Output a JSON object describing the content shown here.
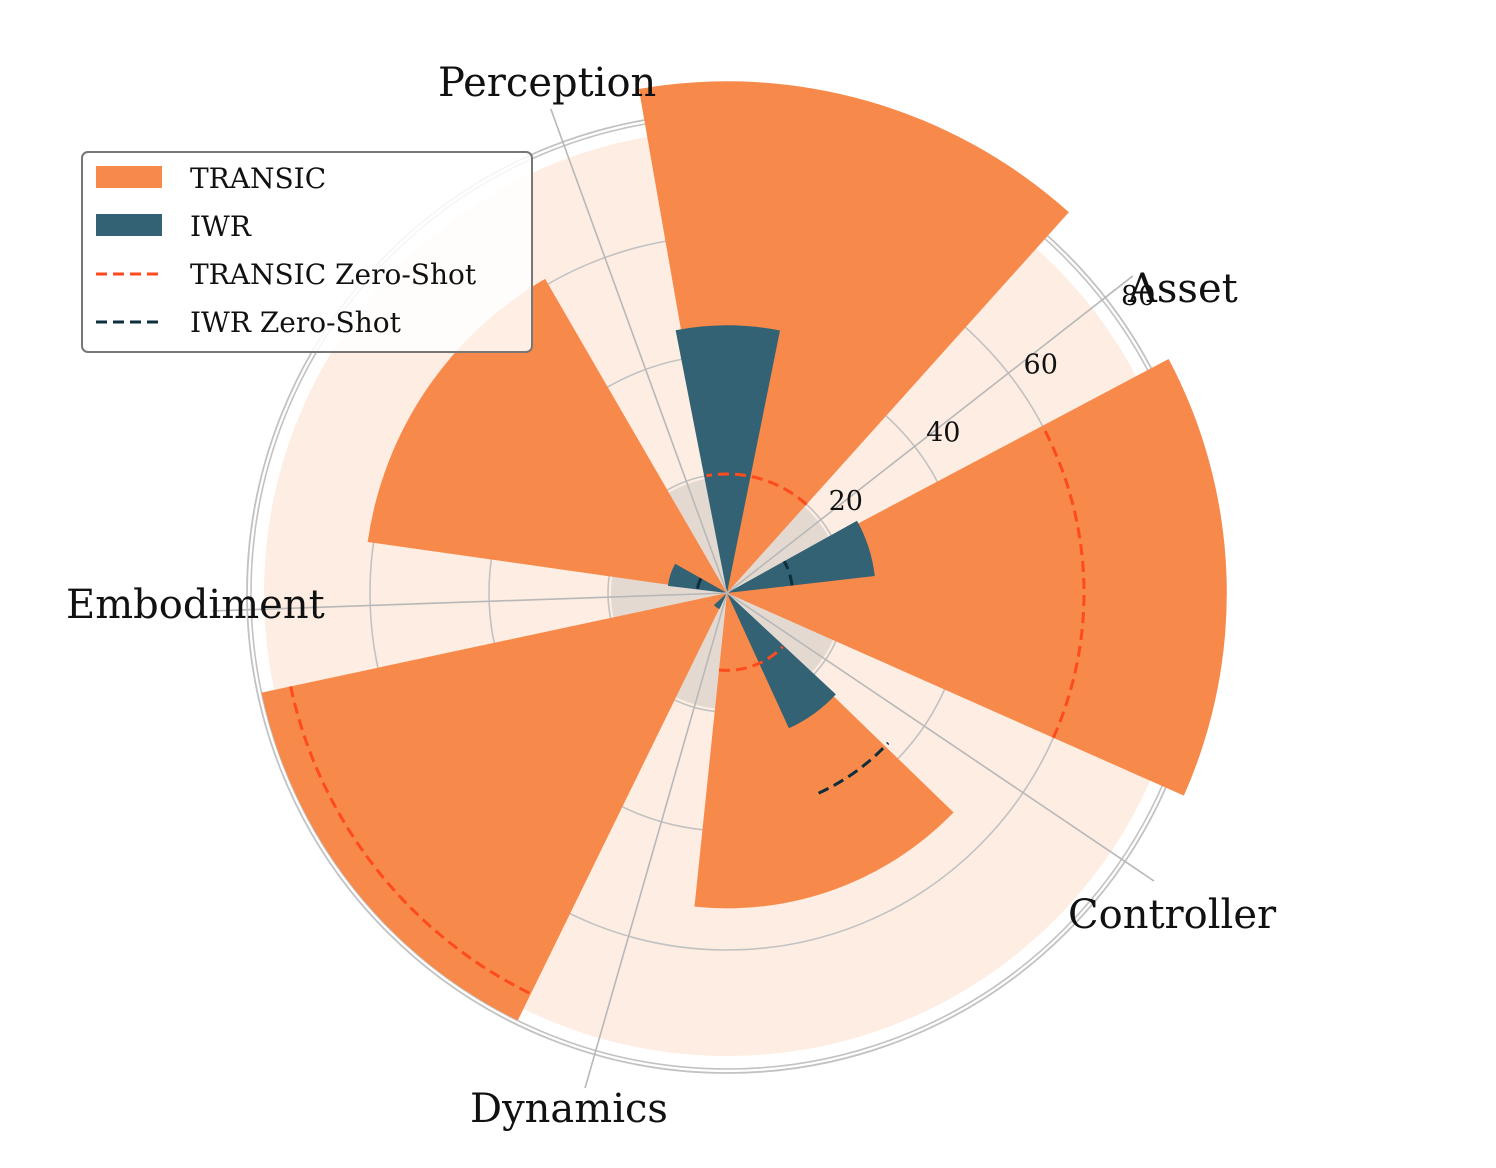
{
  "chart_data": {
    "type": "polar-bar",
    "title": "",
    "categories": [
      "Asset",
      "Perception",
      "Embodiment",
      "Dynamics",
      "Controller"
    ],
    "radial_ticks": [
      20,
      40,
      60,
      80
    ],
    "radial_max": 80,
    "series": [
      {
        "name": "TRANSIC",
        "color": "#f78a4a",
        "kind": "bar",
        "values": [
          84,
          86,
          61,
          80,
          53
        ]
      },
      {
        "name": "IWR",
        "color": "#336275",
        "kind": "bar",
        "values": [
          25,
          45,
          10,
          3,
          25
        ]
      },
      {
        "name": "TRANSIC Zero-Shot",
        "color": "#ff4a1c",
        "kind": "dashed-arc",
        "values": [
          60,
          20,
          0,
          75,
          13
        ]
      },
      {
        "name": "IWR Zero-Shot",
        "color": "#0f2e3c",
        "kind": "dashed-arc",
        "values": [
          11,
          0,
          5,
          0,
          37
        ]
      }
    ],
    "legend_position": "top-left"
  }
}
